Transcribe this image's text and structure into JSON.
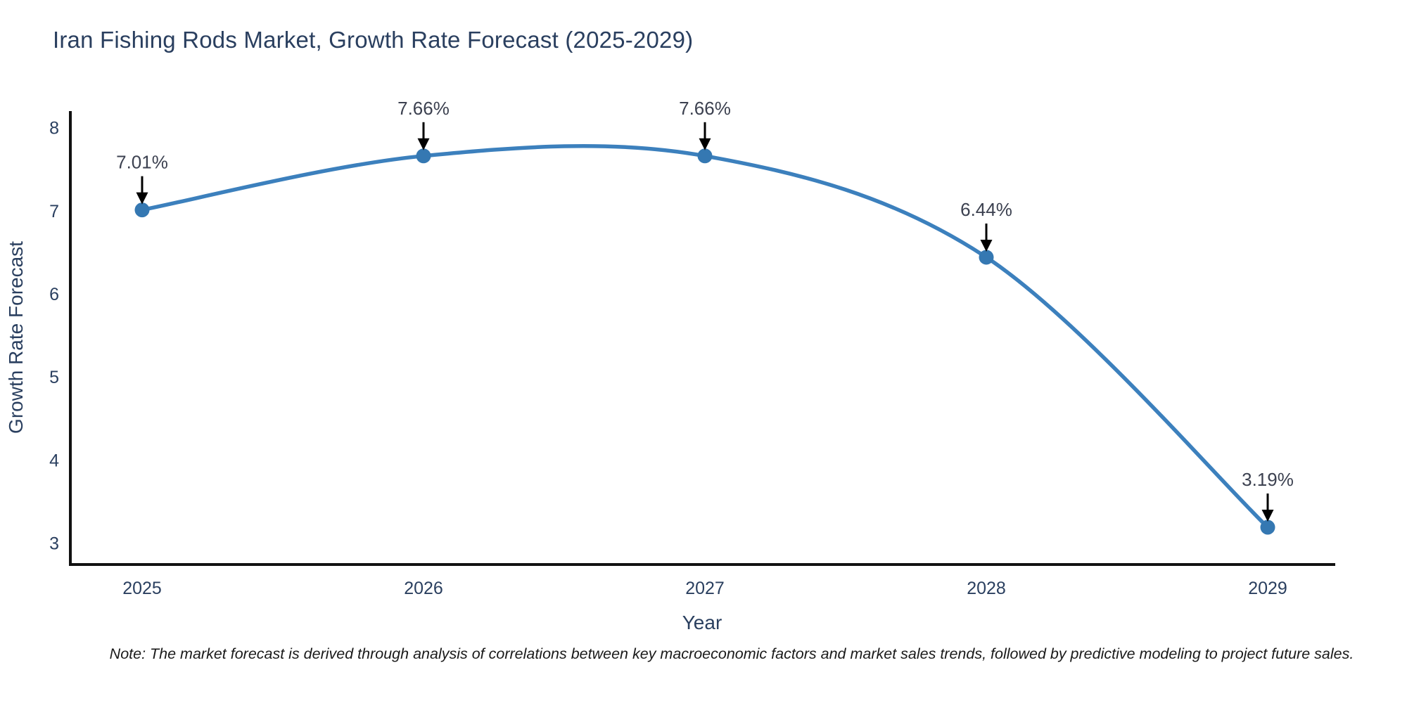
{
  "title": "Iran Fishing Rods Market, Growth Rate Forecast (2025-2029)",
  "note": {
    "text": "Note: The market forecast is derived through analysis of correlations between key macroeconomic factors and market sales trends, followed by predictive modeling to project future sales."
  },
  "colors": {
    "line": "#3c80bd",
    "marker": "#3578b2",
    "axis_line": "#111111",
    "title_text": "#2a3f5f",
    "tick_text": "#2a3f5f",
    "axis_title_text": "#2a3f5f",
    "annotation_text": "#3c4150",
    "annotation_arrow": "#000000",
    "background": "#ffffff"
  },
  "chart_data": {
    "type": "line",
    "title": "Iran Fishing Rods Market, Growth Rate Forecast (2025-2029)",
    "xlabel": "Year",
    "ylabel": "Growth Rate Forecast",
    "x": [
      2025,
      2026,
      2027,
      2028,
      2029
    ],
    "values": [
      7.01,
      7.66,
      7.66,
      6.44,
      3.19
    ],
    "point_labels": [
      "7.01%",
      "7.66%",
      "7.66%",
      "6.44%",
      "3.19%"
    ],
    "xticks": [
      2025,
      2026,
      2027,
      2028,
      2029
    ],
    "yticks": [
      3,
      4,
      5,
      6,
      7,
      8
    ],
    "xlim": [
      2024.74,
      2029.24
    ],
    "ylim": [
      2.75,
      8.2
    ],
    "line_shape": "spline",
    "grid": false,
    "legend": "none",
    "annotations_style": "value-label-with-down-arrow"
  }
}
